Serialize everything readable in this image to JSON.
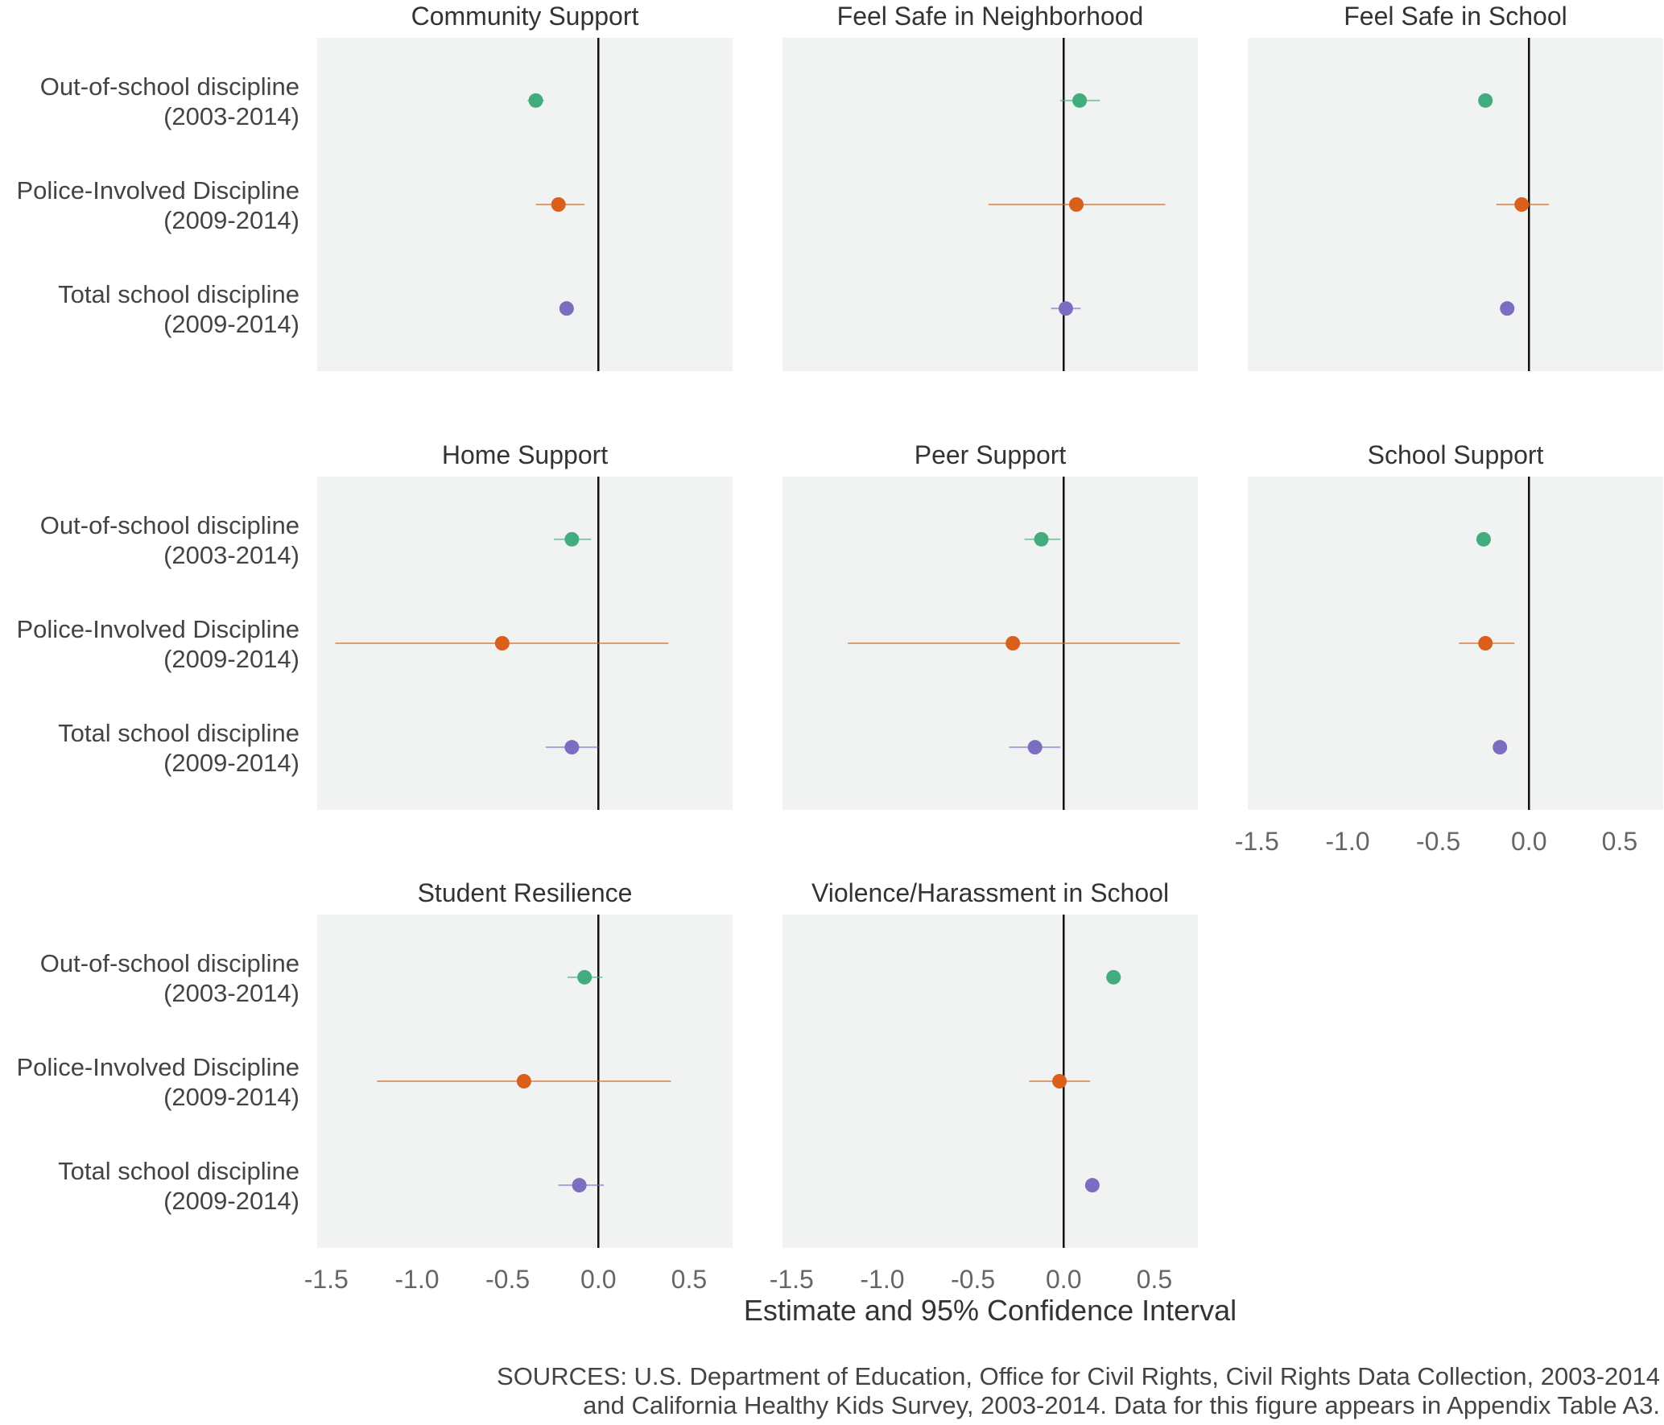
{
  "chart_data": {
    "type": "dot-whisker",
    "xlabel": "Estimate and 95% Confidence Interval",
    "xlim": [
      -1.55,
      0.74
    ],
    "xticks": [
      -1.5,
      -1.0,
      -0.5,
      0.0,
      0.5
    ],
    "xtick_labels": [
      "-1.5",
      "-1.0",
      "-0.5",
      "0.0",
      "0.5"
    ],
    "reference_line": 0,
    "categories": [
      {
        "line1": "Out-of-school discipline",
        "line2": "(2003-2014)",
        "color": "#43ac7e"
      },
      {
        "line1": "Police-Involved Discipline",
        "line2": "(2009-2014)",
        "color": "#d95f1a"
      },
      {
        "line1": "Total school discipline",
        "line2": "(2009-2014)",
        "color": "#7a6ec0"
      }
    ],
    "panels": [
      {
        "title": "Community Support",
        "estimates": [
          -0.345,
          -0.22,
          -0.175
        ],
        "lower": [
          -0.39,
          -0.345,
          -0.2
        ],
        "upper": [
          -0.3,
          -0.076,
          -0.15
        ]
      },
      {
        "title": "Feel Safe in Neighborhood",
        "estimates": [
          0.088,
          0.07,
          0.012
        ],
        "lower": [
          -0.02,
          -0.415,
          -0.07
        ],
        "upper": [
          0.2,
          0.56,
          0.094
        ]
      },
      {
        "title": "Feel Safe in School",
        "estimates": [
          -0.24,
          -0.04,
          -0.12
        ],
        "lower": [
          -0.28,
          -0.18,
          -0.14
        ],
        "upper": [
          -0.2,
          0.11,
          -0.1
        ]
      },
      {
        "title": "Home Support",
        "estimates": [
          -0.146,
          -0.53,
          -0.146
        ],
        "lower": [
          -0.245,
          -1.45,
          -0.29
        ],
        "upper": [
          -0.04,
          0.386,
          0.0
        ]
      },
      {
        "title": "Peer Support",
        "estimates": [
          -0.123,
          -0.28,
          -0.158
        ],
        "lower": [
          -0.216,
          -1.19,
          -0.3
        ],
        "upper": [
          -0.018,
          0.64,
          -0.018
        ]
      },
      {
        "title": "School Support",
        "estimates": [
          -0.25,
          -0.24,
          -0.16
        ],
        "lower": [
          -0.29,
          -0.386,
          -0.18
        ],
        "upper": [
          -0.21,
          -0.08,
          -0.14
        ]
      },
      {
        "title": "Student Resilience",
        "estimates": [
          -0.076,
          -0.41,
          -0.105
        ],
        "lower": [
          -0.17,
          -1.22,
          -0.22
        ],
        "upper": [
          0.023,
          0.4,
          0.03
        ]
      },
      {
        "title": "Violence/Harassment in School",
        "estimates": [
          0.275,
          -0.023,
          0.158
        ],
        "lower": [
          0.235,
          -0.19,
          0.138
        ],
        "upper": [
          0.315,
          0.146,
          0.178
        ]
      }
    ]
  },
  "sources": {
    "line1": "SOURCES: U.S. Department of Education, Office for Civil Rights, Civil Rights Data Collection, 2003-2014",
    "line2": "and California Healthy Kids Survey, 2003-2014. Data for this figure appears in Appendix Table A3."
  }
}
